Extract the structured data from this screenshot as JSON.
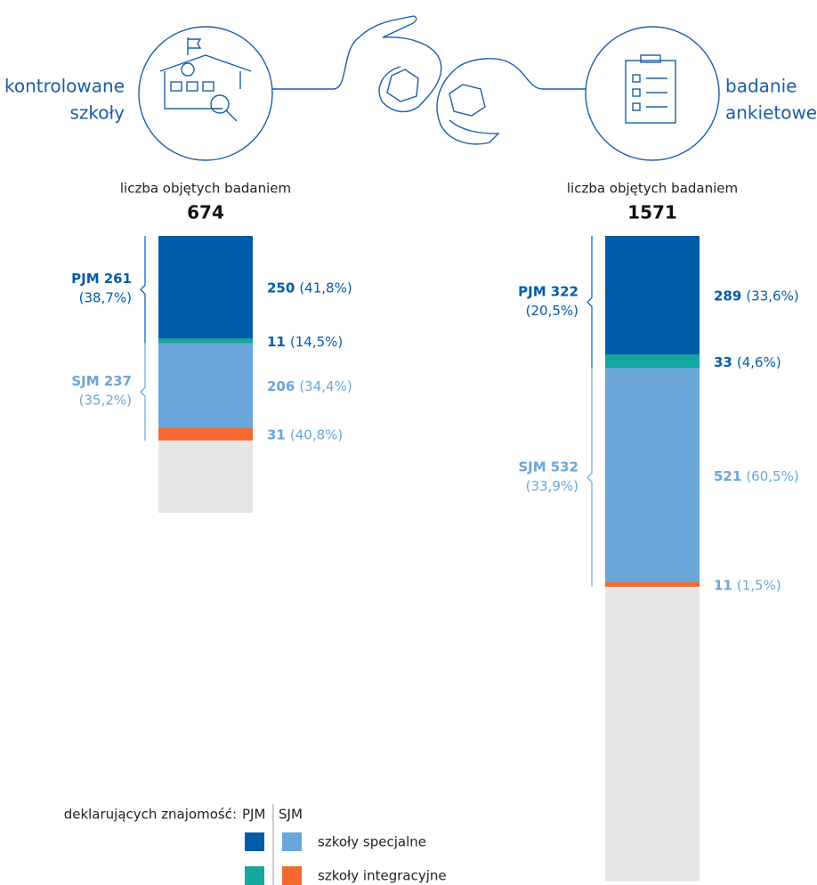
{
  "chart_data": [
    {
      "type": "stacked-bar",
      "title_lines": [
        "kontrolowane",
        "szkoły"
      ],
      "subtitle": "liczba objętych badaniem",
      "total": 674,
      "groups": [
        {
          "name": "PJM",
          "value": 261,
          "percent_label": "(38,7%)",
          "values": [
            250,
            11
          ],
          "percent_labels": [
            "(41,8%)",
            "(14,5%)"
          ]
        },
        {
          "name": "SJM",
          "value": 237,
          "percent_label": "(35,2%)",
          "values": [
            206,
            31
          ],
          "percent_labels": [
            "(34,4%)",
            "(40,8%)"
          ]
        }
      ]
    },
    {
      "type": "stacked-bar",
      "title_lines": [
        "badanie",
        "ankietowe"
      ],
      "subtitle": "liczba objętych badaniem",
      "total": 1571,
      "groups": [
        {
          "name": "PJM",
          "value": 322,
          "percent_label": "(20,5%)",
          "values": [
            289,
            33
          ],
          "percent_labels": [
            "(33,6%)",
            "(4,6%)"
          ]
        },
        {
          "name": "SJM",
          "value": 532,
          "percent_label": "(33,9%)",
          "values": [
            521,
            11
          ],
          "percent_labels": [
            "(60,5%)",
            "(1,5%)"
          ]
        }
      ]
    }
  ],
  "palette": [
    [
      "#005ca9",
      "#14a79d"
    ],
    [
      "#6aa6d9",
      "#f26a2d"
    ]
  ],
  "remainder_color": "#e6e6e7",
  "legend": {
    "label": "deklarujących znajomość:",
    "columns": [
      "PJM",
      "SJM"
    ],
    "rows": [
      "szkoły specjalne",
      "szkoły integracyjne"
    ]
  }
}
